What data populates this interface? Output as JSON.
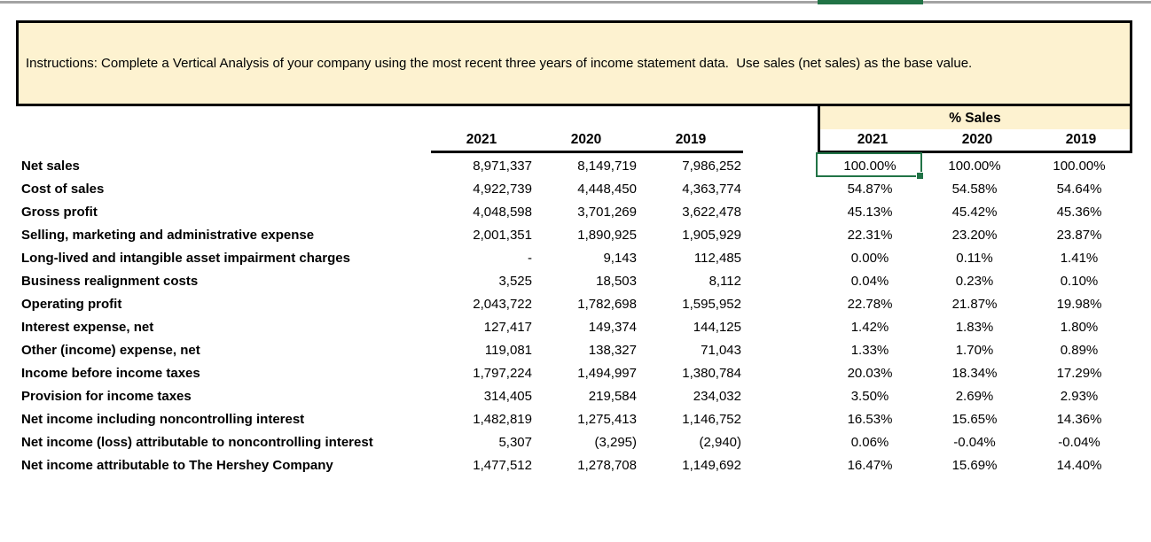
{
  "window": {
    "top_bar_color": "#a3a3a3",
    "selected_column_indicator_color": "#217346"
  },
  "instructions": {
    "text": "Instructions: Complete a Vertical Analysis of your company using the most recent three years of income statement data.  Use sales (net sales) as the base value."
  },
  "colors": {
    "banner_fill": "#fdf2d0",
    "pct_header_fill": "#fdf2d0",
    "selection_green": "#217346",
    "border_black": "#000000"
  },
  "table": {
    "pct_header": "% Sales",
    "left_years": [
      "2021",
      "2020",
      "2019"
    ],
    "right_years": [
      "2021",
      "2020",
      "2019"
    ],
    "rows": [
      {
        "label": "Net sales",
        "values": [
          "8,971,337",
          "8,149,719",
          "7,986,252"
        ],
        "pcts": [
          "100.00%",
          "100.00%",
          "100.00%"
        ]
      },
      {
        "label": "Cost of sales",
        "values": [
          "4,922,739",
          "4,448,450",
          "4,363,774"
        ],
        "pcts": [
          "54.87%",
          "54.58%",
          "54.64%"
        ]
      },
      {
        "label": "Gross profit",
        "values": [
          "4,048,598",
          "3,701,269",
          "3,622,478"
        ],
        "pcts": [
          "45.13%",
          "45.42%",
          "45.36%"
        ]
      },
      {
        "label": "Selling, marketing and administrative expense",
        "values": [
          "2,001,351",
          "1,890,925",
          "1,905,929"
        ],
        "pcts": [
          "22.31%",
          "23.20%",
          "23.87%"
        ]
      },
      {
        "label": "Long-lived and intangible asset impairment charges",
        "values": [
          "-",
          "9,143",
          "112,485"
        ],
        "pcts": [
          "0.00%",
          "0.11%",
          "1.41%"
        ]
      },
      {
        "label": "Business realignment costs",
        "values": [
          "3,525",
          "18,503",
          "8,112"
        ],
        "pcts": [
          "0.04%",
          "0.23%",
          "0.10%"
        ]
      },
      {
        "label": "Operating profit",
        "values": [
          "2,043,722",
          "1,782,698",
          "1,595,952"
        ],
        "pcts": [
          "22.78%",
          "21.87%",
          "19.98%"
        ]
      },
      {
        "label": "Interest expense, net",
        "values": [
          "127,417",
          "149,374",
          "144,125"
        ],
        "pcts": [
          "1.42%",
          "1.83%",
          "1.80%"
        ]
      },
      {
        "label": "Other (income) expense, net",
        "values": [
          "119,081",
          "138,327",
          "71,043"
        ],
        "pcts": [
          "1.33%",
          "1.70%",
          "0.89%"
        ]
      },
      {
        "label": "Income before income taxes",
        "values": [
          "1,797,224",
          "1,494,997",
          "1,380,784"
        ],
        "pcts": [
          "20.03%",
          "18.34%",
          "17.29%"
        ]
      },
      {
        "label": "Provision for income taxes",
        "values": [
          "314,405",
          "219,584",
          "234,032"
        ],
        "pcts": [
          "3.50%",
          "2.69%",
          "2.93%"
        ]
      },
      {
        "label": "Net income including noncontrolling interest",
        "values": [
          "1,482,819",
          "1,275,413",
          "1,146,752"
        ],
        "pcts": [
          "16.53%",
          "15.65%",
          "14.36%"
        ]
      },
      {
        "label": "Net income (loss) attributable to noncontrolling interest",
        "values": [
          "5,307",
          "(3,295)",
          "(2,940)"
        ],
        "pcts": [
          "0.06%",
          "-0.04%",
          "-0.04%"
        ]
      },
      {
        "label": "Net income attributable to The Hershey Company",
        "values": [
          "1,477,512",
          "1,278,708",
          "1,149,692"
        ],
        "pcts": [
          "16.47%",
          "15.69%",
          "14.40%"
        ]
      }
    ],
    "selected_cell": {
      "row": 0,
      "column": "pct-2021",
      "value": "100.00%"
    }
  }
}
